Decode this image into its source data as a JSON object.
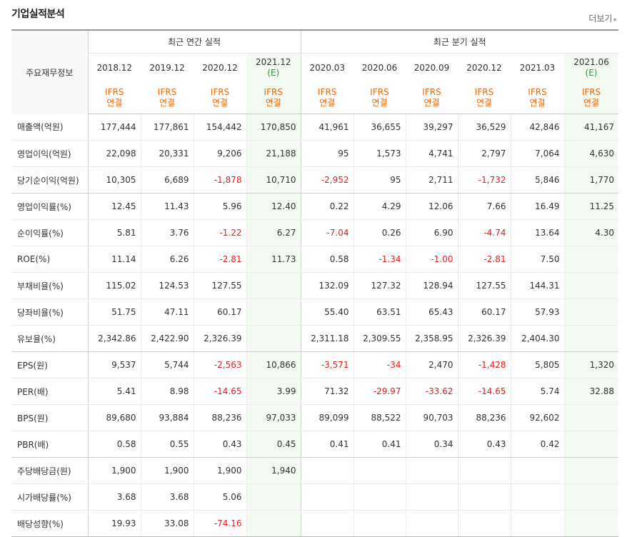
{
  "header": {
    "title": "기업실적분석",
    "more_label": "더보기",
    "more_arrow": "▸"
  },
  "table": {
    "corner_label": "주요재무정보",
    "annual_label": "최근 연간 실적",
    "quarter_label": "최근 분기 실적",
    "columns": [
      {
        "period": "2018.12",
        "est": "",
        "ifrs": "IFRS",
        "basis": "연결"
      },
      {
        "period": "2019.12",
        "est": "",
        "ifrs": "IFRS",
        "basis": "연결"
      },
      {
        "period": "2020.12",
        "est": "",
        "ifrs": "IFRS",
        "basis": "연결"
      },
      {
        "period": "2021.12",
        "est": "(E)",
        "ifrs": "IFRS",
        "basis": "연결"
      },
      {
        "period": "2020.03",
        "est": "",
        "ifrs": "IFRS",
        "basis": "연결"
      },
      {
        "period": "2020.06",
        "est": "",
        "ifrs": "IFRS",
        "basis": "연결"
      },
      {
        "period": "2020.09",
        "est": "",
        "ifrs": "IFRS",
        "basis": "연결"
      },
      {
        "period": "2020.12",
        "est": "",
        "ifrs": "IFRS",
        "basis": "연결"
      },
      {
        "period": "2021.03",
        "est": "",
        "ifrs": "IFRS",
        "basis": "연결"
      },
      {
        "period": "2021.06",
        "est": "(E)",
        "ifrs": "IFRS",
        "basis": "연결"
      }
    ],
    "rows": [
      {
        "label": "매출액(억원)",
        "values": [
          "177,444",
          "177,861",
          "154,442",
          "170,850",
          "41,961",
          "36,655",
          "39,297",
          "36,529",
          "42,846",
          "41,167"
        ]
      },
      {
        "label": "영업이익(억원)",
        "values": [
          "22,098",
          "20,331",
          "9,206",
          "21,188",
          "95",
          "1,573",
          "4,741",
          "2,797",
          "7,064",
          "4,630"
        ]
      },
      {
        "label": "당기순이익(억원)",
        "values": [
          "10,305",
          "6,689",
          "-1,878",
          "10,710",
          "-2,952",
          "95",
          "2,711",
          "-1,732",
          "5,846",
          "1,770"
        ]
      },
      {
        "label": "영업이익률(%)",
        "values": [
          "12.45",
          "11.43",
          "5.96",
          "12.40",
          "0.22",
          "4.29",
          "12.06",
          "7.66",
          "16.49",
          "11.25"
        ]
      },
      {
        "label": "순이익률(%)",
        "values": [
          "5.81",
          "3.76",
          "-1.22",
          "6.27",
          "-7.04",
          "0.26",
          "6.90",
          "-4.74",
          "13.64",
          "4.30"
        ]
      },
      {
        "label": "ROE(%)",
        "values": [
          "11.14",
          "6.26",
          "-2.81",
          "11.73",
          "0.58",
          "-1.34",
          "-1.00",
          "-2.81",
          "7.50",
          ""
        ]
      },
      {
        "label": "부채비율(%)",
        "values": [
          "115.02",
          "124.53",
          "127.55",
          "",
          "132.09",
          "127.32",
          "128.94",
          "127.55",
          "144.31",
          ""
        ]
      },
      {
        "label": "당좌비율(%)",
        "values": [
          "51.75",
          "47.11",
          "60.17",
          "",
          "55.40",
          "63.51",
          "65.43",
          "60.17",
          "57.93",
          ""
        ]
      },
      {
        "label": "유보율(%)",
        "values": [
          "2,342.86",
          "2,422.90",
          "2,326.39",
          "",
          "2,311.18",
          "2,309.55",
          "2,358.95",
          "2,326.39",
          "2,404.30",
          ""
        ]
      },
      {
        "label": "EPS(원)",
        "values": [
          "9,537",
          "5,744",
          "-2,563",
          "10,866",
          "-3,571",
          "-34",
          "2,470",
          "-1,428",
          "5,805",
          "1,320"
        ]
      },
      {
        "label": "PER(배)",
        "values": [
          "5.41",
          "8.98",
          "-14.65",
          "3.99",
          "71.32",
          "-29.97",
          "-33.62",
          "-14.65",
          "5.74",
          "32.88"
        ]
      },
      {
        "label": "BPS(원)",
        "values": [
          "89,680",
          "93,884",
          "88,236",
          "97,033",
          "89,099",
          "88,522",
          "90,703",
          "88,236",
          "92,602",
          ""
        ]
      },
      {
        "label": "PBR(배)",
        "values": [
          "0.58",
          "0.55",
          "0.43",
          "0.45",
          "0.41",
          "0.41",
          "0.34",
          "0.43",
          "0.42",
          ""
        ]
      },
      {
        "label": "주당배당금(원)",
        "values": [
          "1,900",
          "1,900",
          "1,900",
          "1,940",
          "",
          "",
          "",
          "",
          "",
          ""
        ]
      },
      {
        "label": "시가배당률(%)",
        "values": [
          "3.68",
          "3.68",
          "5.06",
          "",
          "",
          "",
          "",
          "",
          "",
          ""
        ]
      },
      {
        "label": "배당성향(%)",
        "values": [
          "19.93",
          "33.08",
          "-74.16",
          "",
          "",
          "",
          "",
          "",
          "",
          ""
        ]
      }
    ]
  },
  "colors": {
    "ifrs": "#e46b12",
    "estimate": "#2a9c3c",
    "negative": "#e02020",
    "estimate_bg": "#f2faf2"
  }
}
